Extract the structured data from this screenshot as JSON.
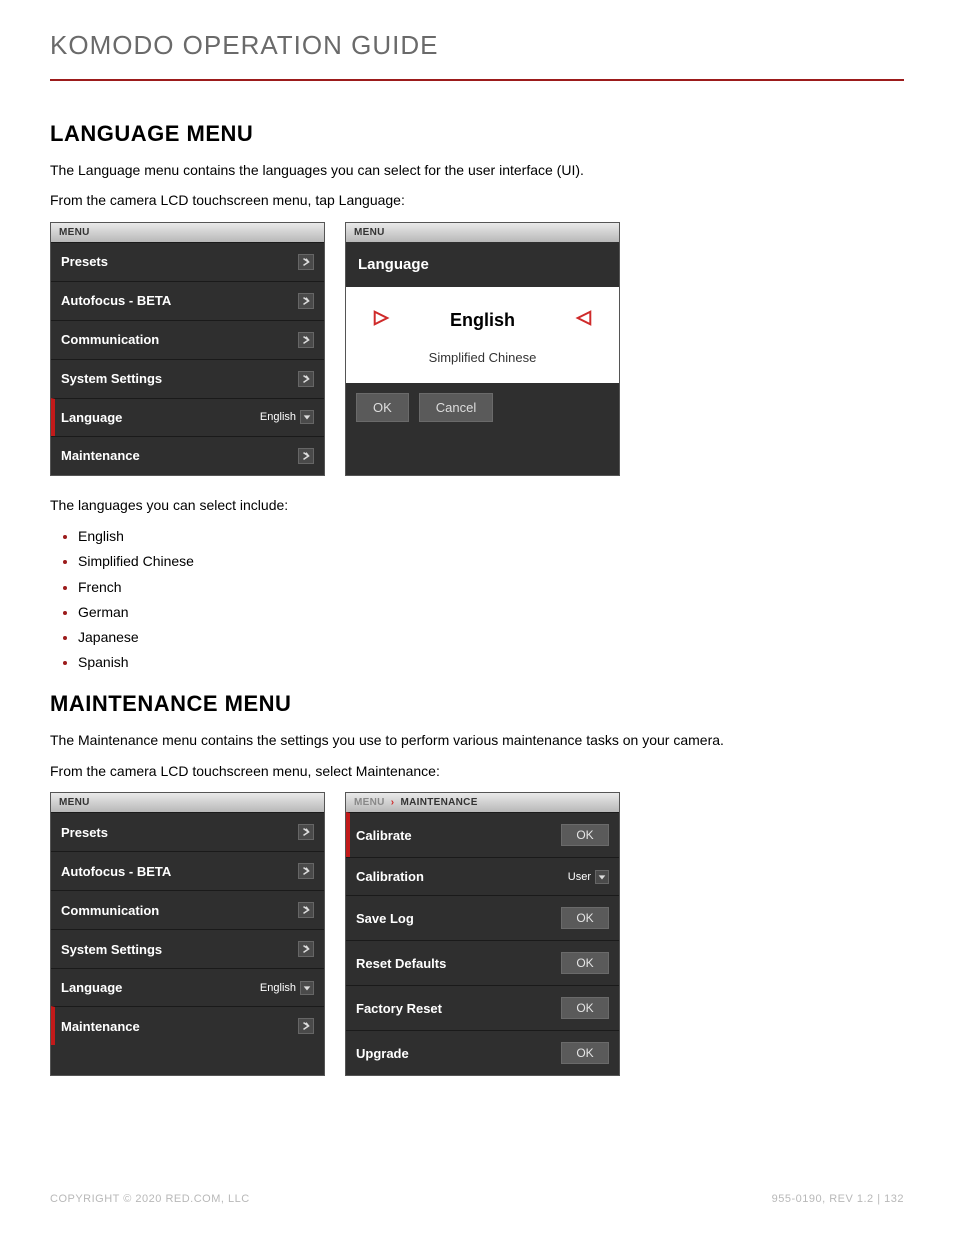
{
  "doc": {
    "title": "KOMODO OPERATION GUIDE",
    "section1_heading": "LANGUAGE MENU",
    "section1_p1": "The Language menu contains the languages you can select for the user interface (UI).",
    "section1_p2": "From the camera LCD touchscreen menu, tap Language:",
    "languages_intro": "The languages you can select include:",
    "languages_list": [
      "English",
      "Simplified Chinese",
      "French",
      "German",
      "Japanese",
      "Spanish"
    ],
    "section2_heading": "MAINTENANCE MENU",
    "section2_p1": "The Maintenance menu contains the settings you use to perform various maintenance tasks on your camera.",
    "section2_p2": "From the camera LCD touchscreen menu, select Maintenance:"
  },
  "menu_panel_a": {
    "header_label": "MENU",
    "items": [
      {
        "label": "Presets",
        "type": "chev"
      },
      {
        "label": "Autofocus - BETA",
        "type": "chev"
      },
      {
        "label": "Communication",
        "type": "chev"
      },
      {
        "label": "System Settings",
        "type": "chev"
      },
      {
        "label": "Language",
        "type": "value",
        "value": "English",
        "active": true
      },
      {
        "label": "Maintenance",
        "type": "chev"
      }
    ]
  },
  "lang_panel": {
    "header_label": "MENU",
    "title": "Language",
    "selected": "English",
    "alt": "Simplified Chinese",
    "ok": "OK",
    "cancel": "Cancel"
  },
  "menu_panel_b": {
    "header_label": "MENU",
    "items": [
      {
        "label": "Presets",
        "type": "chev"
      },
      {
        "label": "Autofocus - BETA",
        "type": "chev"
      },
      {
        "label": "Communication",
        "type": "chev"
      },
      {
        "label": "System Settings",
        "type": "chev"
      },
      {
        "label": "Language",
        "type": "value",
        "value": "English"
      },
      {
        "label": "Maintenance",
        "type": "chev",
        "active": true
      }
    ]
  },
  "maint_panel": {
    "crumb_root": "MENU",
    "crumb_leaf": "MAINTENANCE",
    "items": [
      {
        "label": "Calibrate",
        "type": "ok",
        "ok": "OK",
        "active": true
      },
      {
        "label": "Calibration",
        "type": "value",
        "value": "User"
      },
      {
        "label": "Save Log",
        "type": "ok",
        "ok": "OK"
      },
      {
        "label": "Reset Defaults",
        "type": "ok",
        "ok": "OK"
      },
      {
        "label": "Factory Reset",
        "type": "ok",
        "ok": "OK"
      },
      {
        "label": "Upgrade",
        "type": "ok",
        "ok": "OK"
      }
    ]
  },
  "footer": {
    "left": "COPYRIGHT © 2020 RED.COM, LLC",
    "right": "955-0190, REV 1.2  |  132"
  },
  "colors": {
    "accent_red": "#9c1b1b",
    "active_red": "#c21a1a",
    "panel_bg": "#2f2f2f",
    "pill_bg": "#5a5a5a",
    "grad_top": "#e9e9e9",
    "grad_bot": "#b8b8b8"
  }
}
